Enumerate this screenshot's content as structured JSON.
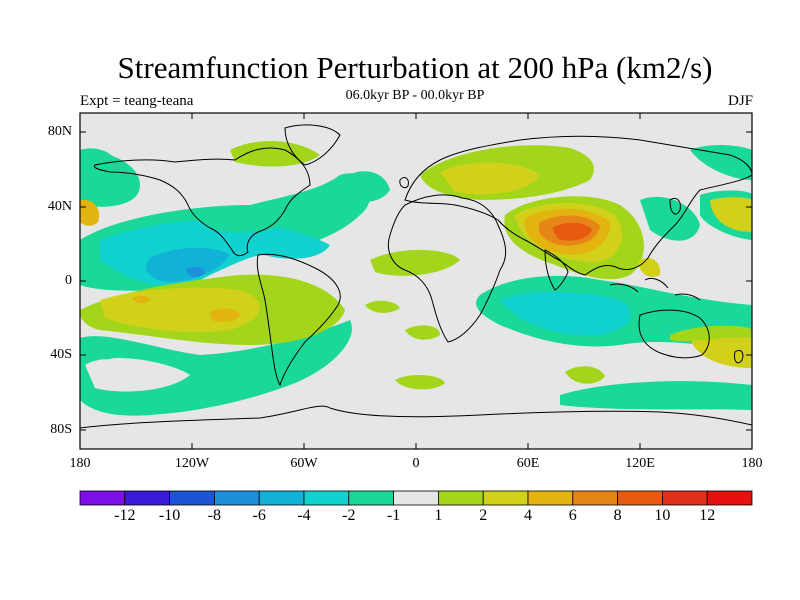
{
  "title": "Streamfunction Perturbation at 200 hPa (km2/s)",
  "subtitle": "06.0kyr BP - 00.0kyr BP",
  "experiment": "Expt = teang-teana",
  "season": "DJF",
  "lat_labels": [
    "80N",
    "40N",
    "0",
    "40S",
    "80S"
  ],
  "lon_labels": [
    "180",
    "120W",
    "60W",
    "0",
    "60E",
    "120E",
    "180"
  ],
  "colorbar": {
    "labels": [
      "-12",
      "-10",
      "-8",
      "-6",
      "-4",
      "-2",
      "-1",
      "1",
      "2",
      "4",
      "6",
      "8",
      "10",
      "12"
    ],
    "colors": [
      "#7d10e6",
      "#3a1ad6",
      "#1b55d4",
      "#1f8fdc",
      "#11b2d8",
      "#12d2d0",
      "#1ad89a",
      "#e6e6e6",
      "#a3d61a",
      "#d1d11a",
      "#e3b30f",
      "#e68518",
      "#e85a10",
      "#e0301a",
      "#e6100e"
    ]
  }
}
